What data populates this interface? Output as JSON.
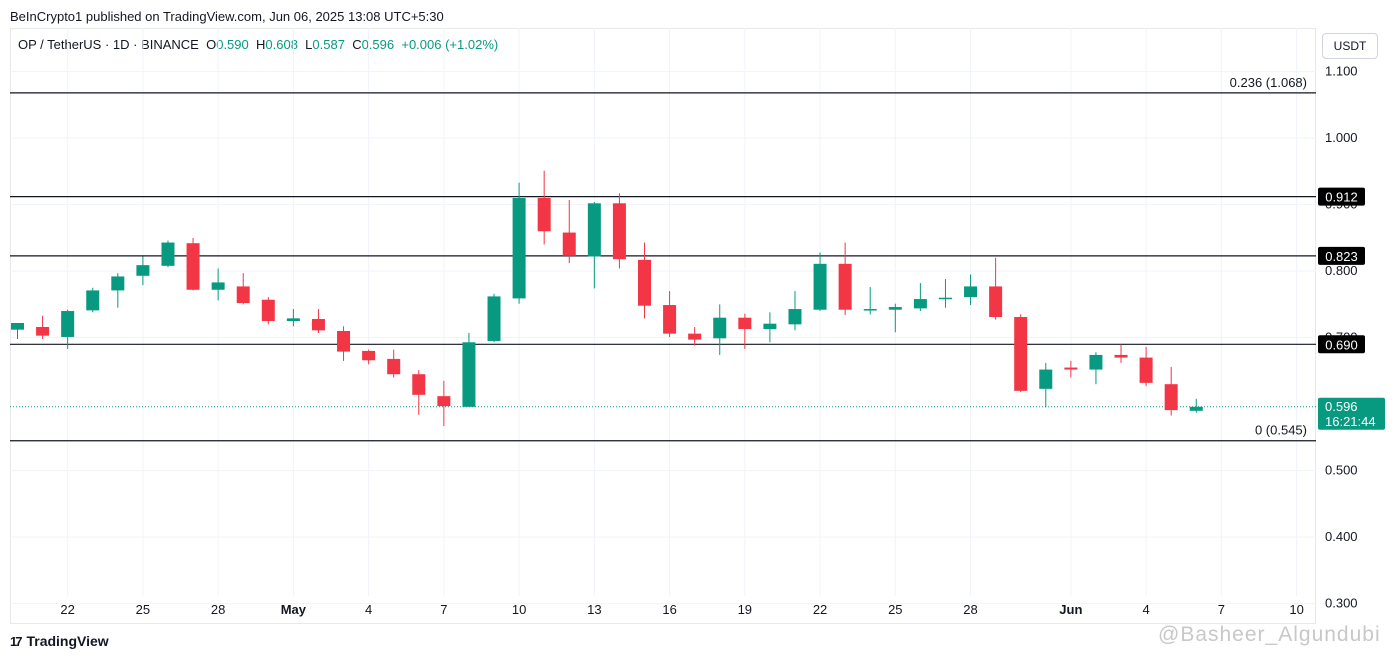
{
  "header": {
    "publish_line": "BeInCrypto1 published on TradingView.com, Jun 06, 2025 13:08 UTC+5:30"
  },
  "legend": {
    "symbol": "OP / TetherUS · 1D · BINANCE",
    "o_label": "O",
    "o_value": "0.590",
    "h_label": "H",
    "h_value": "0.608",
    "l_label": "L",
    "l_value": "0.587",
    "c_label": "C",
    "c_value": "0.596",
    "change": "+0.006 (+1.02%)"
  },
  "currency_button": "USDT",
  "footer": {
    "brand": "TradingView",
    "logo_glyph": "17"
  },
  "watermark": "@Basheer_Algundubi",
  "colors": {
    "up": "#089981",
    "down": "#f23645",
    "line": "#131722",
    "grid": "#f0f3fa",
    "text": "#131722"
  },
  "chart_data": {
    "type": "candlestick",
    "title": "OP / TetherUS · 1D · BINANCE",
    "ylim": [
      0.2694,
      1.1656
    ],
    "y_ticks": [
      {
        "value": 1.1,
        "label": "1.100"
      },
      {
        "value": 1.0,
        "label": "1.000"
      },
      {
        "value": 0.9,
        "label": "0.900"
      },
      {
        "value": 0.8,
        "label": "0.800"
      },
      {
        "value": 0.7,
        "label": "0.700"
      },
      {
        "value": 0.5,
        "label": "0.500"
      },
      {
        "value": 0.4,
        "label": "0.400"
      },
      {
        "value": 0.3,
        "label": "0.300"
      }
    ],
    "x_ticks": [
      {
        "index": 2,
        "label": "22"
      },
      {
        "index": 5,
        "label": "25"
      },
      {
        "index": 8,
        "label": "28"
      },
      {
        "index": 11,
        "label": "May"
      },
      {
        "index": 14,
        "label": "4"
      },
      {
        "index": 17,
        "label": "7"
      },
      {
        "index": 20,
        "label": "10"
      },
      {
        "index": 23,
        "label": "13"
      },
      {
        "index": 26,
        "label": "16"
      },
      {
        "index": 29,
        "label": "19"
      },
      {
        "index": 32,
        "label": "22"
      },
      {
        "index": 35,
        "label": "25"
      },
      {
        "index": 38,
        "label": "28"
      },
      {
        "index": 42,
        "label": "Jun"
      },
      {
        "index": 45,
        "label": "4"
      },
      {
        "index": 48,
        "label": "7"
      },
      {
        "index": 51,
        "label": "10"
      }
    ],
    "candles": [
      {
        "o": 0.712,
        "h": 0.72,
        "l": 0.698,
        "c": 0.722
      },
      {
        "o": 0.716,
        "h": 0.733,
        "l": 0.698,
        "c": 0.703
      },
      {
        "o": 0.701,
        "h": 0.742,
        "l": 0.683,
        "c": 0.74
      },
      {
        "o": 0.741,
        "h": 0.775,
        "l": 0.738,
        "c": 0.771
      },
      {
        "o": 0.771,
        "h": 0.797,
        "l": 0.745,
        "c": 0.792
      },
      {
        "o": 0.793,
        "h": 0.822,
        "l": 0.779,
        "c": 0.809
      },
      {
        "o": 0.808,
        "h": 0.846,
        "l": 0.806,
        "c": 0.843
      },
      {
        "o": 0.842,
        "h": 0.85,
        "l": 0.771,
        "c": 0.772
      },
      {
        "o": 0.772,
        "h": 0.804,
        "l": 0.756,
        "c": 0.783
      },
      {
        "o": 0.777,
        "h": 0.797,
        "l": 0.75,
        "c": 0.752
      },
      {
        "o": 0.757,
        "h": 0.761,
        "l": 0.72,
        "c": 0.725
      },
      {
        "o": 0.725,
        "h": 0.743,
        "l": 0.717,
        "c": 0.729
      },
      {
        "o": 0.728,
        "h": 0.743,
        "l": 0.707,
        "c": 0.711
      },
      {
        "o": 0.71,
        "h": 0.717,
        "l": 0.665,
        "c": 0.679
      },
      {
        "o": 0.68,
        "h": 0.682,
        "l": 0.66,
        "c": 0.666
      },
      {
        "o": 0.668,
        "h": 0.682,
        "l": 0.64,
        "c": 0.645
      },
      {
        "o": 0.645,
        "h": 0.651,
        "l": 0.584,
        "c": 0.614
      },
      {
        "o": 0.612,
        "h": 0.635,
        "l": 0.567,
        "c": 0.597
      },
      {
        "o": 0.596,
        "h": 0.707,
        "l": 0.596,
        "c": 0.693
      },
      {
        "o": 0.695,
        "h": 0.766,
        "l": 0.693,
        "c": 0.762
      },
      {
        "o": 0.759,
        "h": 0.933,
        "l": 0.751,
        "c": 0.91
      },
      {
        "o": 0.91,
        "h": 0.951,
        "l": 0.84,
        "c": 0.86
      },
      {
        "o": 0.858,
        "h": 0.907,
        "l": 0.812,
        "c": 0.823
      },
      {
        "o": 0.822,
        "h": 0.904,
        "l": 0.774,
        "c": 0.902
      },
      {
        "o": 0.902,
        "h": 0.917,
        "l": 0.804,
        "c": 0.818
      },
      {
        "o": 0.817,
        "h": 0.843,
        "l": 0.729,
        "c": 0.748
      },
      {
        "o": 0.749,
        "h": 0.77,
        "l": 0.701,
        "c": 0.706
      },
      {
        "o": 0.706,
        "h": 0.716,
        "l": 0.688,
        "c": 0.697
      },
      {
        "o": 0.699,
        "h": 0.75,
        "l": 0.674,
        "c": 0.73
      },
      {
        "o": 0.73,
        "h": 0.736,
        "l": 0.683,
        "c": 0.713
      },
      {
        "o": 0.713,
        "h": 0.738,
        "l": 0.693,
        "c": 0.721
      },
      {
        "o": 0.72,
        "h": 0.77,
        "l": 0.711,
        "c": 0.743
      },
      {
        "o": 0.742,
        "h": 0.828,
        "l": 0.74,
        "c": 0.811
      },
      {
        "o": 0.811,
        "h": 0.843,
        "l": 0.734,
        "c": 0.742
      },
      {
        "o": 0.741,
        "h": 0.776,
        "l": 0.735,
        "c": 0.743
      },
      {
        "o": 0.742,
        "h": 0.751,
        "l": 0.708,
        "c": 0.746
      },
      {
        "o": 0.744,
        "h": 0.782,
        "l": 0.74,
        "c": 0.758
      },
      {
        "o": 0.758,
        "h": 0.788,
        "l": 0.745,
        "c": 0.76
      },
      {
        "o": 0.761,
        "h": 0.795,
        "l": 0.749,
        "c": 0.777
      },
      {
        "o": 0.777,
        "h": 0.82,
        "l": 0.727,
        "c": 0.731
      },
      {
        "o": 0.731,
        "h": 0.735,
        "l": 0.618,
        "c": 0.62
      },
      {
        "o": 0.623,
        "h": 0.662,
        "l": 0.595,
        "c": 0.652
      },
      {
        "o": 0.655,
        "h": 0.665,
        "l": 0.64,
        "c": 0.652
      },
      {
        "o": 0.652,
        "h": 0.678,
        "l": 0.63,
        "c": 0.674
      },
      {
        "o": 0.674,
        "h": 0.69,
        "l": 0.662,
        "c": 0.67
      },
      {
        "o": 0.67,
        "h": 0.686,
        "l": 0.627,
        "c": 0.632
      },
      {
        "o": 0.63,
        "h": 0.656,
        "l": 0.583,
        "c": 0.591
      },
      {
        "o": 0.59,
        "h": 0.608,
        "l": 0.587,
        "c": 0.596
      }
    ],
    "fib_levels": [
      {
        "value": 1.068,
        "label": "0.236 (1.068)",
        "box": false
      },
      {
        "value": 0.912,
        "label": "0.912",
        "box": true
      },
      {
        "value": 0.823,
        "label": "0.823",
        "box": true
      },
      {
        "value": 0.69,
        "label": "0.690",
        "box": true
      },
      {
        "value": 0.545,
        "label": "0 (0.545)",
        "box": false
      }
    ],
    "current_price": {
      "value": 0.596,
      "label": "0.596",
      "countdown": "16:21:44"
    }
  }
}
